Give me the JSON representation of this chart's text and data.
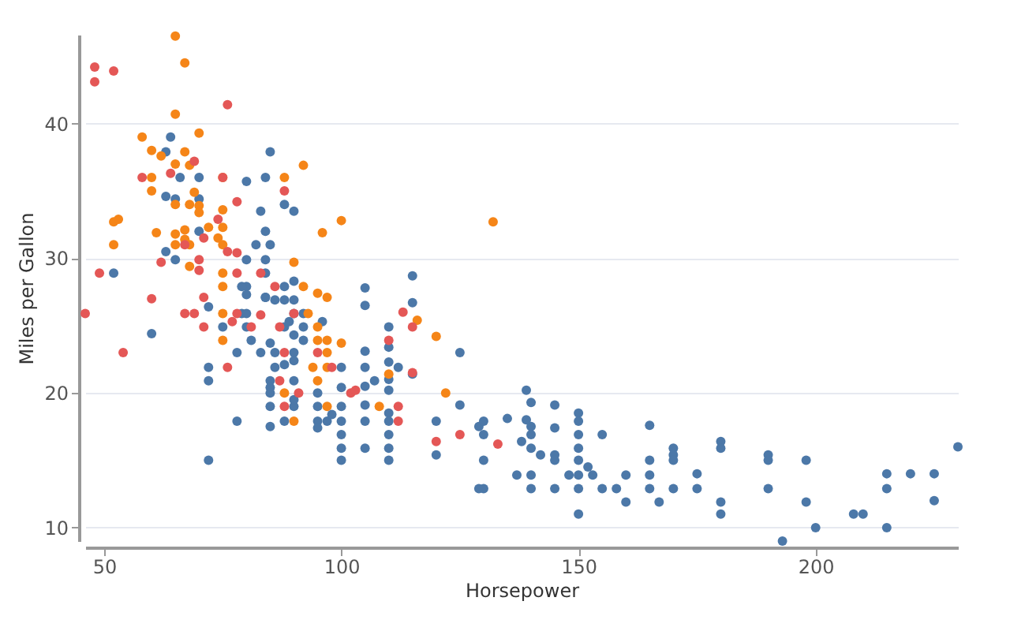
{
  "chart_data": {
    "type": "scatter",
    "xlabel": "Horsepower",
    "ylabel": "Miles per Gallon",
    "xlim": [
      46,
      230
    ],
    "ylim": [
      9,
      46.6
    ],
    "xticks": [
      50,
      100,
      150,
      200
    ],
    "yticks": [
      10,
      20,
      30,
      40
    ],
    "grid": "y",
    "series": [
      {
        "color": "#4c78a8",
        "x": [
          64,
          63,
          66,
          70,
          85,
          84,
          80,
          63,
          65,
          70,
          88,
          90,
          83,
          70,
          84,
          63,
          65,
          80,
          82,
          85,
          84,
          84,
          52,
          80,
          90,
          88,
          84,
          86,
          88,
          90,
          60,
          72,
          72,
          72,
          72,
          75,
          78,
          78,
          79,
          80,
          80,
          81,
          79,
          80,
          83,
          84,
          85,
          85,
          85,
          85,
          85,
          85,
          86,
          86,
          88,
          88,
          88,
          89,
          90,
          90,
          90,
          90,
          90,
          90,
          90,
          92,
          92,
          92,
          95,
          95,
          95,
          95,
          97,
          98,
          96,
          100,
          100,
          100,
          100,
          100,
          100,
          100,
          105,
          105,
          115,
          115,
          110,
          110,
          110,
          105,
          105,
          105,
          105,
          105,
          105,
          107,
          112,
          110,
          110,
          110,
          110,
          110,
          110,
          110,
          115,
          120,
          120,
          125,
          125,
          129,
          130,
          130,
          130,
          129,
          130,
          135,
          137,
          138,
          139,
          140,
          140,
          140,
          140,
          140,
          140,
          139,
          142,
          145,
          145,
          145,
          145,
          145,
          148,
          150,
          150,
          150,
          150,
          150,
          150,
          150,
          150,
          152,
          153,
          155,
          155,
          158,
          160,
          160,
          165,
          165,
          165,
          165,
          167,
          170,
          170,
          170,
          170,
          175,
          175,
          180,
          180,
          180,
          180,
          190,
          190,
          190,
          193,
          198,
          198,
          200,
          208,
          210,
          215,
          215,
          215,
          220,
          225,
          225,
          230
        ],
        "values": [
          39,
          37.9,
          36,
          36,
          37.9,
          36,
          35.7,
          34.6,
          34.4,
          34.4,
          34,
          33.5,
          33.5,
          32,
          32,
          30.5,
          29.9,
          29.9,
          31,
          31,
          29.9,
          28.9,
          28.9,
          27.9,
          28.3,
          27.9,
          27.1,
          26.9,
          26.9,
          26.9,
          24.4,
          21.9,
          20.9,
          15,
          26.4,
          24.9,
          23,
          17.9,
          25.9,
          24.9,
          25.9,
          23.9,
          27.9,
          27.3,
          23,
          27.1,
          23.7,
          20.9,
          20.4,
          20,
          19,
          17.5,
          23,
          21.9,
          24.9,
          22.1,
          17.9,
          25.3,
          23,
          20.9,
          19,
          19.5,
          22.4,
          24.3,
          25.9,
          25.9,
          24.9,
          23.9,
          20,
          19,
          17.9,
          17.4,
          17.9,
          18.4,
          25.3,
          21.9,
          20.4,
          19,
          17.9,
          16.9,
          15.9,
          15,
          27.8,
          26.5,
          28.7,
          26.7,
          24.9,
          23.4,
          22.3,
          23.1,
          21.9,
          20.5,
          19.1,
          17.9,
          15.9,
          20.9,
          21.9,
          21,
          20.2,
          18.5,
          17.9,
          16.9,
          15.9,
          15,
          21.4,
          17.9,
          15.4,
          23,
          19.1,
          17.5,
          17.9,
          16.9,
          15,
          12.9,
          12.9,
          18.1,
          13.9,
          16.4,
          20.2,
          19.3,
          17.5,
          16.9,
          15.9,
          13.9,
          12.9,
          18,
          15.4,
          19.1,
          17.4,
          15.4,
          15,
          12.9,
          13.9,
          18.5,
          17.9,
          16.9,
          15.9,
          15,
          13.9,
          12.9,
          11,
          14.5,
          13.9,
          16.9,
          12.9,
          12.9,
          13.9,
          11.9,
          17.6,
          15,
          13.9,
          12.9,
          11.9,
          15.9,
          15.4,
          15,
          12.9,
          14,
          12.9,
          16.4,
          15.9,
          11.9,
          11,
          15.4,
          15,
          12.9,
          9,
          15,
          11.9,
          10,
          11,
          11,
          14,
          12.9,
          10,
          14,
          14,
          12,
          16
        ]
      },
      {
        "color": "#f58518",
        "x": [
          65,
          67,
          65,
          58,
          70,
          60,
          67,
          62,
          65,
          68,
          60,
          75,
          88,
          92,
          60,
          69,
          65,
          68,
          70,
          70,
          75,
          52,
          53,
          72,
          67,
          75,
          61,
          65,
          67,
          68,
          65,
          74,
          75,
          52,
          68,
          96,
          100,
          90,
          75,
          75,
          92,
          95,
          97,
          75,
          75,
          93,
          95,
          95,
          97,
          94,
          97,
          95,
          97,
          97,
          90,
          88,
          100,
          132,
          110,
          116,
          120,
          122,
          108
        ],
        "values": [
          46.5,
          44.5,
          40.7,
          39,
          39.3,
          38,
          37.9,
          37.6,
          37,
          36.9,
          36,
          36,
          36,
          36.9,
          35,
          34.9,
          34,
          34,
          33.9,
          33.4,
          33.6,
          32.7,
          32.9,
          32.3,
          32.1,
          32.3,
          31.9,
          31.8,
          31.4,
          31,
          31,
          31.5,
          31,
          31,
          29.4,
          31.9,
          32.8,
          29.7,
          28.9,
          27.9,
          27.9,
          27.4,
          27.1,
          25.9,
          23.9,
          25.9,
          24.9,
          23.9,
          23.9,
          21.9,
          23,
          20.9,
          21.9,
          19,
          17.9,
          20,
          23.7,
          32.7,
          21.4,
          25.4,
          24.2,
          20,
          19
        ]
      },
      {
        "color": "#e45756",
        "x": [
          48,
          48,
          52,
          76,
          58,
          64,
          69,
          75,
          88,
          78,
          74,
          71,
          67,
          70,
          62,
          49,
          70,
          76,
          78,
          78,
          83,
          60,
          46,
          54,
          67,
          69,
          71,
          71,
          76,
          77,
          78,
          81,
          83,
          86,
          87,
          88,
          88,
          87,
          91,
          95,
          98,
          90,
          102,
          103,
          113,
          115,
          110,
          112,
          112,
          120,
          125,
          133,
          115
        ],
        "values": [
          44.2,
          43.1,
          43.9,
          41.4,
          36,
          36.3,
          37.2,
          36,
          35,
          34.2,
          32.9,
          31.5,
          31,
          29.9,
          29.7,
          28.9,
          29.1,
          30.5,
          30.4,
          28.9,
          28.9,
          27,
          25.9,
          23,
          25.9,
          25.9,
          24.9,
          27.1,
          21.9,
          25.3,
          25.9,
          24.9,
          25.8,
          27.9,
          24.9,
          23,
          19,
          20.9,
          20,
          23,
          21.9,
          25.9,
          20,
          20.2,
          26,
          24.9,
          23.9,
          19,
          17.9,
          16.4,
          16.9,
          16.2,
          21.5
        ]
      }
    ]
  }
}
